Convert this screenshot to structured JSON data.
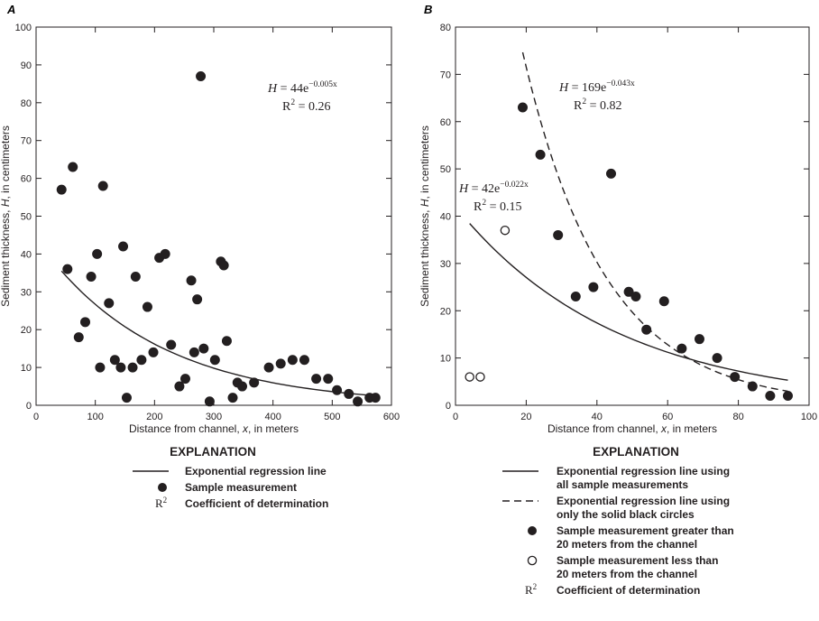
{
  "chart_data": [
    {
      "panel": "A",
      "type": "scatter",
      "xlabel_parts": [
        "Distance from channel, ",
        "x",
        ", in meters"
      ],
      "ylabel_parts": [
        "Sediment thickness, ",
        "H",
        ", in centimeters"
      ],
      "xlim": [
        0,
        600
      ],
      "ylim": [
        0,
        100
      ],
      "xticks": [
        0,
        100,
        200,
        300,
        400,
        500,
        600
      ],
      "yticks": [
        0,
        10,
        20,
        30,
        40,
        50,
        60,
        70,
        80,
        90,
        100
      ],
      "grid": false,
      "series": [
        {
          "marker": "filled-circle",
          "points": [
            [
              43,
              57
            ],
            [
              53,
              36
            ],
            [
              62,
              63
            ],
            [
              72,
              18
            ],
            [
              83,
              22
            ],
            [
              93,
              34
            ],
            [
              103,
              40
            ],
            [
              108,
              10
            ],
            [
              113,
              58
            ],
            [
              123,
              27
            ],
            [
              133,
              12
            ],
            [
              143,
              10
            ],
            [
              147,
              42
            ],
            [
              153,
              2
            ],
            [
              163,
              10
            ],
            [
              168,
              34
            ],
            [
              178,
              12
            ],
            [
              188,
              26
            ],
            [
              198,
              14
            ],
            [
              208,
              39
            ],
            [
              218,
              40
            ],
            [
              228,
              16
            ],
            [
              242,
              5
            ],
            [
              252,
              7
            ],
            [
              262,
              33
            ],
            [
              267,
              14
            ],
            [
              272,
              28
            ],
            [
              278,
              87
            ],
            [
              283,
              15
            ],
            [
              293,
              1
            ],
            [
              302,
              12
            ],
            [
              312,
              38
            ],
            [
              317,
              37
            ],
            [
              322,
              17
            ],
            [
              332,
              2
            ],
            [
              340,
              6
            ],
            [
              348,
              5
            ],
            [
              368,
              6
            ],
            [
              393,
              10
            ],
            [
              413,
              11
            ],
            [
              433,
              12
            ],
            [
              453,
              12
            ],
            [
              473,
              7
            ],
            [
              493,
              7
            ],
            [
              508,
              4
            ],
            [
              528,
              3
            ],
            [
              543,
              1
            ],
            [
              563,
              2
            ],
            [
              573,
              2
            ]
          ]
        },
        {
          "marker": "solid-line",
          "fit": {
            "a": 44,
            "b": -0.005,
            "xrange": [
              43,
              575
            ]
          },
          "samples": [
            [
              43,
              35.5
            ],
            [
              100,
              26.9
            ],
            [
              150,
              21.2
            ],
            [
              200,
              16.2
            ],
            [
              250,
              12.6
            ],
            [
              300,
              10.0
            ],
            [
              350,
              7.7
            ],
            [
              400,
              6.1
            ],
            [
              450,
              4.9
            ],
            [
              500,
              4.0
            ],
            [
              575,
              3.0
            ]
          ]
        }
      ],
      "annotations": [
        {
          "lines": [
            {
              "var": "H",
              "eq": " = 44e",
              "exp": "−0.005x"
            },
            {
              "r": "R",
              "sup": "2",
              "val": " = 0.26"
            }
          ]
        }
      ]
    },
    {
      "panel": "B",
      "type": "scatter",
      "xlabel_parts": [
        "Distance from channel, ",
        "x",
        ", in meters"
      ],
      "ylabel_parts": [
        "Sediment thickness, ",
        "H",
        ", in centimeters"
      ],
      "xlim": [
        0,
        100
      ],
      "ylim": [
        0,
        80
      ],
      "xticks": [
        0,
        20,
        40,
        60,
        80,
        100
      ],
      "yticks": [
        0,
        10,
        20,
        30,
        40,
        50,
        60,
        70,
        80
      ],
      "grid": false,
      "series": [
        {
          "marker": "filled-circle",
          "points": [
            [
              19,
              63
            ],
            [
              24,
              53
            ],
            [
              29,
              36
            ],
            [
              34,
              23
            ],
            [
              39,
              25
            ],
            [
              44,
              49
            ],
            [
              49,
              24
            ],
            [
              51,
              23
            ],
            [
              54,
              16
            ],
            [
              59,
              22
            ],
            [
              64,
              12
            ],
            [
              69,
              14
            ],
            [
              74,
              10
            ],
            [
              79,
              6
            ],
            [
              84,
              4
            ],
            [
              89,
              2
            ],
            [
              94,
              2
            ]
          ]
        },
        {
          "marker": "open-circle",
          "points": [
            [
              4,
              6
            ],
            [
              7,
              6
            ],
            [
              14,
              37
            ]
          ]
        },
        {
          "marker": "solid-line",
          "fit": {
            "a": 42,
            "b": -0.022,
            "xrange": [
              4,
              94
            ]
          },
          "samples": [
            [
              4,
              38.6
            ],
            [
              10,
              33.2
            ],
            [
              20,
              26.5
            ],
            [
              30,
              21.4
            ],
            [
              40,
              17.3
            ],
            [
              50,
              14.0
            ],
            [
              60,
              11.4
            ],
            [
              70,
              9.4
            ],
            [
              80,
              7.7
            ],
            [
              94,
              5.3
            ]
          ]
        },
        {
          "marker": "dashed-line",
          "fit": {
            "a": 169,
            "b": -0.043,
            "xrange": [
              19,
              94
            ]
          },
          "samples": [
            [
              19,
              74.5
            ],
            [
              25,
              57.7
            ],
            [
              30,
              46.0
            ],
            [
              40,
              30.3
            ],
            [
              50,
              20.1
            ],
            [
              60,
              13.5
            ],
            [
              70,
              8.9
            ],
            [
              80,
              5.9
            ],
            [
              94,
              3.2
            ]
          ]
        }
      ],
      "annotations": [
        {
          "lines": [
            {
              "var": "H",
              "eq": " = 169e",
              "exp": "−0.043x"
            },
            {
              "r": "R",
              "sup": "2",
              "val": " = 0.82"
            }
          ]
        },
        {
          "lines": [
            {
              "var": "H",
              "eq": " = 42e",
              "exp": "−0.022x"
            },
            {
              "r": "R",
              "sup": "2",
              "val": " = 0.15"
            }
          ]
        }
      ]
    }
  ],
  "explanation": [
    {
      "panel": "A",
      "title": "EXPLANATION",
      "items": [
        {
          "symbol": "solid-line",
          "lines": [
            "Exponential regression line"
          ]
        },
        {
          "symbol": "filled-circle",
          "lines": [
            "Sample measurement"
          ]
        },
        {
          "symbol": "R2",
          "symbol_text": "R",
          "symbol_sup": "2",
          "lines": [
            "Coefficient of determination"
          ]
        }
      ]
    },
    {
      "panel": "B",
      "title": "EXPLANATION",
      "items": [
        {
          "symbol": "solid-line",
          "lines": [
            "Exponential regression line using",
            "all sample measurements"
          ]
        },
        {
          "symbol": "dashed-line",
          "lines": [
            "Exponential regression line using",
            "only the solid black circles"
          ]
        },
        {
          "symbol": "filled-circle",
          "lines": [
            "Sample measurement greater than",
            "20 meters from the channel"
          ]
        },
        {
          "symbol": "open-circle",
          "lines": [
            "Sample measurement less than",
            "20 meters from the channel"
          ]
        },
        {
          "symbol": "R2",
          "symbol_text": "R",
          "symbol_sup": "2",
          "lines": [
            "Coefficient of determination"
          ]
        }
      ]
    }
  ]
}
